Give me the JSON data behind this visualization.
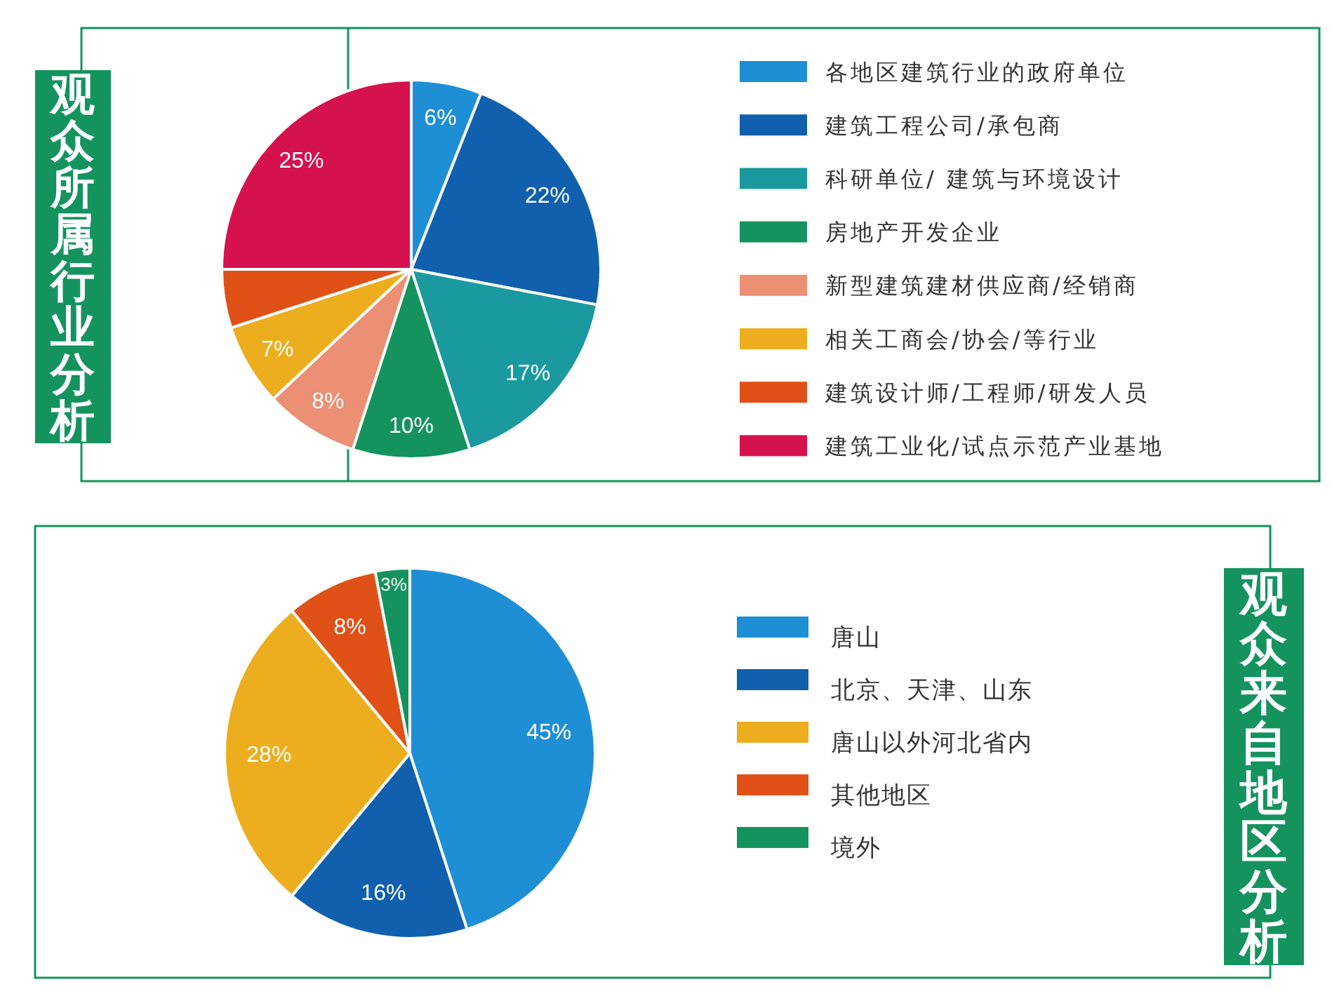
{
  "chart_data": [
    {
      "type": "pie",
      "title": "观众所属行业分析",
      "categories": [
        "各地区建筑行业的政府单位",
        "建筑工程公司/承包商",
        "科研单位/ 建筑与环境设计",
        "房地产开发企业",
        "新型建筑建材供应商/经销商",
        "相关工商会/协会/等行业",
        "建筑设计师/工程师/研发人员",
        "建筑工业化/试点示范产业基地"
      ],
      "values": [
        6,
        22,
        17,
        10,
        8,
        7,
        5,
        25
      ],
      "colors": [
        "#1e8fd5",
        "#1060ae",
        "#1a9a9e",
        "#15935f",
        "#eb8f75",
        "#ecae1f",
        "#e05117",
        "#d5124e"
      ],
      "value_labels": [
        "6%",
        "22%",
        "17%",
        "10%",
        "8%",
        "7%",
        null,
        "25%"
      ],
      "legend": "right"
    },
    {
      "type": "pie",
      "title": "观众来自地区分析",
      "categories": [
        "唐山",
        "北京、天津、山东",
        "唐山以外河北省内",
        "其他地区",
        "境外"
      ],
      "values": [
        45,
        16,
        28,
        8,
        3
      ],
      "colors": [
        "#1e8fd5",
        "#1060ae",
        "#ecae1f",
        "#e05117",
        "#15935f"
      ],
      "value_labels": [
        "45%",
        "16%",
        "28%",
        "8%",
        "3%"
      ],
      "legend": "right"
    }
  ]
}
